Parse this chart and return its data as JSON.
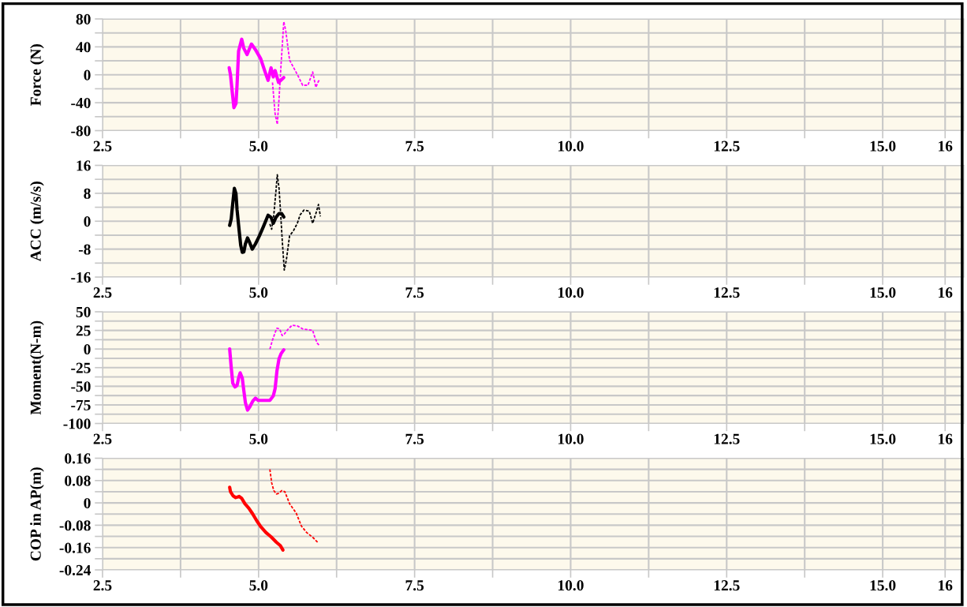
{
  "chart_data": [
    {
      "type": "line",
      "ylabel": "Force (N)",
      "grid": true,
      "xlim": [
        2.5,
        16.3
      ],
      "ylim": [
        -80,
        80
      ],
      "xticks": [
        2.5,
        {
          "value": 3.75,
          "label": null
        },
        "5.0",
        {
          "value": 6.25,
          "label": null
        },
        {
          "value": 7.5,
          "label": "7.5"
        },
        {
          "value": 8.75,
          "label": null
        },
        {
          "value": 10,
          "label": "10.0"
        },
        {
          "value": 11.25,
          "label": null
        },
        {
          "value": 12.5,
          "label": "12.5"
        },
        {
          "value": 13.75,
          "label": null
        },
        {
          "value": 15,
          "label": "15.0"
        },
        16
      ],
      "yticks": [
        -80,
        {
          "value": -60,
          "label": null
        },
        -40,
        {
          "value": -20,
          "label": null
        },
        0,
        {
          "value": 20,
          "label": null
        },
        40,
        {
          "value": 60,
          "label": null
        },
        80
      ],
      "series": [
        {
          "color": "#ff00ff",
          "line_style": "solid",
          "x": [
            4.529,
            4.55,
            4.58,
            4.605,
            4.638,
            4.655,
            4.68,
            4.73,
            4.763,
            4.815,
            4.886,
            4.95,
            5.034,
            5.097,
            5.152,
            5.2,
            5.236,
            5.265,
            5.32,
            5.404
          ],
          "values": [
            10,
            0,
            -26,
            -47,
            -41,
            -15,
            34,
            51,
            38,
            29,
            44,
            36,
            23,
            6,
            -8,
            10,
            -3,
            6,
            -11,
            -4
          ]
        },
        {
          "color": "#ff00ff",
          "line_style": "dashed",
          "x": [
            5.223,
            5.265,
            5.3,
            5.328,
            5.362,
            5.404,
            5.434,
            5.497,
            5.623,
            5.707,
            5.791,
            5.867,
            5.918,
            5.96,
            5.99
          ],
          "values": [
            -11,
            -56,
            -71,
            -34,
            17,
            76,
            64,
            21,
            0,
            -15,
            -15,
            4,
            -18,
            -9,
            -7
          ]
        }
      ]
    },
    {
      "type": "line",
      "ylabel": "ACC (m/s/s)",
      "grid": true,
      "xlim": [
        2.5,
        16.3
      ],
      "ylim": [
        -16,
        16
      ],
      "xticks": [
        2.5,
        {
          "value": 3.75,
          "label": null
        },
        "5.0",
        {
          "value": 6.25,
          "label": null
        },
        {
          "value": 7.5,
          "label": "7.5"
        },
        {
          "value": 8.75,
          "label": null
        },
        {
          "value": 10,
          "label": "10.0"
        },
        {
          "value": 11.25,
          "label": null
        },
        {
          "value": 12.5,
          "label": "12.5"
        },
        {
          "value": 13.75,
          "label": null
        },
        {
          "value": 15,
          "label": "15.0"
        },
        16
      ],
      "yticks": [
        -16,
        {
          "value": -12,
          "label": null
        },
        -8,
        {
          "value": -4,
          "label": null
        },
        0,
        {
          "value": 4,
          "label": null
        },
        8,
        {
          "value": 12,
          "label": null
        },
        16
      ],
      "series": [
        {
          "color": "#000000",
          "line_style": "solid",
          "x": [
            4.537,
            4.562,
            4.587,
            4.612,
            4.638,
            4.655,
            4.689,
            4.714,
            4.739,
            4.764,
            4.789,
            4.823,
            4.857,
            4.899,
            4.95,
            5.013,
            5.076,
            5.152,
            5.2,
            5.236,
            5.278,
            5.328,
            5.37,
            5.404
          ],
          "values": [
            -1.2,
            0.7,
            5.2,
            9.4,
            7.9,
            3.3,
            -2.7,
            -6.9,
            -8.9,
            -8.8,
            -6.5,
            -4.8,
            -6.1,
            -8.0,
            -6.5,
            -4.2,
            -1.6,
            1.7,
            1.1,
            -0.6,
            1.1,
            2.2,
            2.2,
            1.2
          ]
        },
        {
          "color": "#000000",
          "line_style": "dashed",
          "x": [
            5.181,
            5.21,
            5.244,
            5.278,
            5.3,
            5.328,
            5.35,
            5.38,
            5.412,
            5.446,
            5.497,
            5.56,
            5.623,
            5.665,
            5.728,
            5.812,
            5.867,
            5.918,
            5.96,
            5.99
          ],
          "values": [
            -0.8,
            -2.3,
            1.8,
            8.6,
            13.3,
            9.4,
            3.3,
            -5.7,
            -14.0,
            -11.0,
            -4.2,
            -2.7,
            -0.5,
            1.8,
            3.2,
            2.9,
            -0.6,
            2.2,
            4.8,
            1.4
          ]
        }
      ]
    },
    {
      "type": "line",
      "ylabel": "Moment(N-m)",
      "grid": true,
      "xlim": [
        2.5,
        16.3
      ],
      "ylim": [
        -100,
        50
      ],
      "xticks": [
        2.5,
        {
          "value": 3.75,
          "label": null
        },
        "5.0",
        {
          "value": 6.25,
          "label": null
        },
        {
          "value": 7.5,
          "label": "7.5"
        },
        {
          "value": 8.75,
          "label": null
        },
        {
          "value": 10,
          "label": "10.0"
        },
        {
          "value": 11.25,
          "label": null
        },
        {
          "value": 12.5,
          "label": "12.5"
        },
        {
          "value": 13.75,
          "label": null
        },
        {
          "value": 15,
          "label": "15.0"
        },
        16
      ],
      "yticks": [
        -100,
        {
          "value": -87.5,
          "label": null
        },
        -75,
        {
          "value": -62.5,
          "label": null
        },
        -50,
        {
          "value": -37.5,
          "label": null
        },
        -25,
        {
          "value": -12.5,
          "label": null
        },
        0,
        {
          "value": 12.5,
          "label": null
        },
        25,
        {
          "value": 37.5,
          "label": null
        },
        50
      ],
      "series": [
        {
          "color": "#ff00ff",
          "line_style": "solid",
          "x": [
            4.537,
            4.562,
            4.587,
            4.621,
            4.655,
            4.68,
            4.705,
            4.739,
            4.764,
            4.789,
            4.823,
            4.857,
            4.907,
            4.95,
            4.992,
            5.076,
            5.181,
            5.236,
            5.265,
            5.295,
            5.328,
            5.362,
            5.404
          ],
          "values": [
            0,
            -25,
            -46,
            -51,
            -49,
            -39,
            -32,
            -39,
            -56,
            -72,
            -82,
            -78,
            -70,
            -66,
            -69,
            -69,
            -69,
            -63,
            -53,
            -29,
            -13,
            -6,
            -1
          ]
        },
        {
          "color": "#ff00ff",
          "line_style": "dashed",
          "x": [
            5.181,
            5.223,
            5.265,
            5.295,
            5.337,
            5.379,
            5.412,
            5.476,
            5.539,
            5.623,
            5.707,
            5.791,
            5.867,
            5.897,
            5.939,
            5.981
          ],
          "values": [
            0,
            12,
            22,
            28,
            27,
            18,
            20,
            27,
            32,
            31,
            27,
            26,
            25,
            17,
            8,
            4
          ]
        }
      ]
    },
    {
      "type": "line",
      "ylabel": "COP in AP(m)",
      "grid": true,
      "xlim": [
        2.5,
        16.3
      ],
      "ylim": [
        -0.24,
        0.16
      ],
      "xticks": [
        2.5,
        {
          "value": 3.75,
          "label": null
        },
        "5.0",
        {
          "value": 6.25,
          "label": null
        },
        {
          "value": 7.5,
          "label": "7.5"
        },
        {
          "value": 8.75,
          "label": null
        },
        {
          "value": 10,
          "label": "10.0"
        },
        {
          "value": 11.25,
          "label": null
        },
        {
          "value": 12.5,
          "label": "12.5"
        },
        {
          "value": 13.75,
          "label": null
        },
        {
          "value": 15,
          "label": "15.0"
        },
        16
      ],
      "yticks": [
        -0.24,
        {
          "value": -0.2,
          "label": null
        },
        -0.16,
        {
          "value": -0.12,
          "label": null
        },
        -0.08,
        {
          "value": -0.04,
          "label": null
        },
        0,
        {
          "value": 0.04,
          "label": null
        },
        0.08,
        {
          "value": 0.12,
          "label": null
        },
        0.16
      ],
      "series": [
        {
          "color": "#ff0000",
          "line_style": "solid",
          "x": [
            4.537,
            4.55,
            4.592,
            4.634,
            4.689,
            4.731,
            4.781,
            4.844,
            4.907,
            4.971,
            5.034,
            5.118,
            5.202,
            5.286,
            5.349,
            5.391
          ],
          "values": [
            0.056,
            0.04,
            0.025,
            0.019,
            0.023,
            0.016,
            -0.003,
            -0.019,
            -0.04,
            -0.064,
            -0.085,
            -0.106,
            -0.122,
            -0.141,
            -0.153,
            -0.169
          ]
        },
        {
          "color": "#ff0000",
          "line_style": "dashed",
          "x": [
            5.181,
            5.21,
            5.244,
            5.286,
            5.328,
            5.37,
            5.421,
            5.497,
            5.602,
            5.686,
            5.77,
            5.876,
            5.96
          ],
          "values": [
            0.12,
            0.072,
            0.044,
            0.032,
            0.035,
            0.044,
            0.04,
            -0.003,
            -0.036,
            -0.083,
            -0.106,
            -0.125,
            -0.144
          ]
        }
      ]
    }
  ]
}
